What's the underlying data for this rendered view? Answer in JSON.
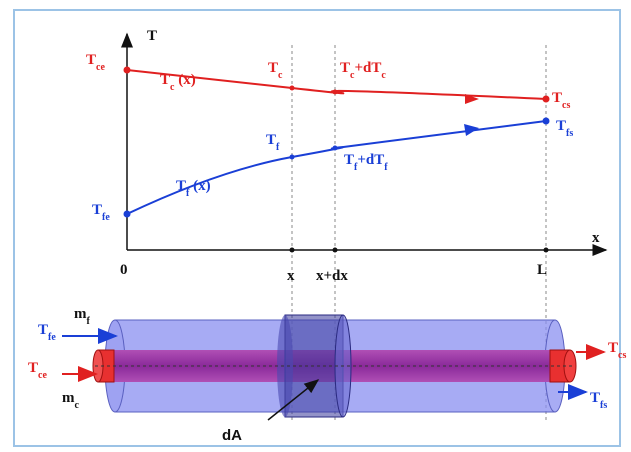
{
  "graph": {
    "y_axis": "T",
    "x_axis": "x",
    "origin": "0",
    "ticks": [
      "x",
      "x+dx",
      "L"
    ],
    "hot_labels": {
      "inlet": [
        "T",
        "ce"
      ],
      "curve": [
        "T",
        "c",
        " (x)"
      ],
      "at_x": [
        "T",
        "c"
      ],
      "at_dx": [
        "T",
        "c",
        "+dT",
        "c"
      ],
      "outlet": [
        "T",
        "cs"
      ]
    },
    "cold_labels": {
      "inlet": [
        "T",
        "fe"
      ],
      "curve": [
        "T",
        "f",
        " (x)"
      ],
      "at_x": [
        "T",
        "f"
      ],
      "at_dx": [
        "T",
        "f",
        "+dT",
        "f"
      ],
      "outlet": [
        "T",
        "fs"
      ]
    }
  },
  "exchanger": {
    "cold_flow": [
      "m",
      "f"
    ],
    "cold_in": [
      "T",
      "fe"
    ],
    "hot_in": [
      "T",
      "ce"
    ],
    "hot_flow": [
      "m",
      "c"
    ],
    "hot_out": [
      "T",
      "cs"
    ],
    "cold_out": [
      "T",
      "fs"
    ],
    "area": "dA"
  }
}
